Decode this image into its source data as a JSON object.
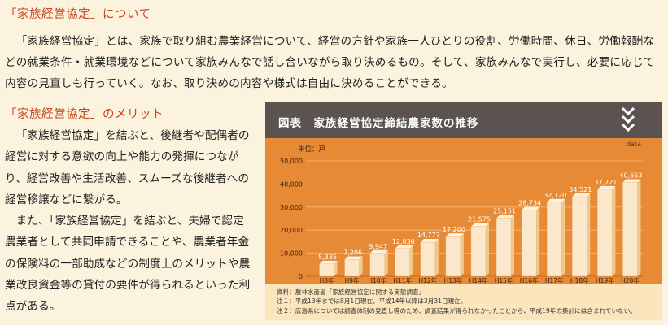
{
  "section1": {
    "heading": "「家族経営協定」について",
    "body": "「家族経営協定」とは、家族で取り組む農業経営について、経営の方針や家族一人ひとりの役割、労働時間、休日、労働報酬などの就業条件・就業環境などについて家族みんなで話し合いながら取り決めるもの。そして、家族みんなで実行し、必要に応じて内容の見直しも行っていく。なお、取り決めの内容や様式は自由に決めることができる。"
  },
  "section2": {
    "heading": "「家族経営協定」のメリット",
    "body1": "「家族経営協定」を結ぶと、後継者や配偶者の経営に対する意欲の向上や能力の発揮につながり、経営改善や生活改善、スムーズな後継者への経営移譲などに繋がる。",
    "body2": "また、「家族経営協定」を結ぶと、夫婦で認定農業者として共同申請できることや、農業者年金の保険料の一部助成などの制度上のメリットや農業改良資金等の貸付の要件が得られるといった利点がある。"
  },
  "figure": {
    "title": "図表　家族経営協定締結農家数の推移",
    "tag": "data",
    "icon": "triple-chevron-down-icon",
    "colors": {
      "header": "#5c5350",
      "plot_bg": "#e78a35",
      "bar_front": "#fbe8cc",
      "bar_side": "#f2c98d",
      "panel_bg": "#fbe5bd"
    },
    "notes": [
      "資料：農林水産省「家族経営協定に関する実態調査」",
      "注１：平成13年までは8月1日現在、平成14年以降は3月31日現在。",
      "注２：広島県については調査体制の見直し等のため、調査結果が得られなかったことから、平成19年の集計には含まれていない。"
    ]
  },
  "chart_data": {
    "type": "bar",
    "title": "家族経営協定締結農家数の推移",
    "unit_label": "単位：戸",
    "categories": [
      "H8年",
      "H9年",
      "H10年",
      "H11年",
      "H12年",
      "H13年",
      "H14年",
      "H15年",
      "H16年",
      "H17年",
      "H18年",
      "H19年",
      "H20年"
    ],
    "values": [
      5335,
      7206,
      9947,
      12030,
      14777,
      17200,
      21575,
      25151,
      28734,
      32120,
      34521,
      37721,
      40663
    ],
    "value_labels": [
      "5,335",
      "7,206",
      "9,947",
      "12,030",
      "14,777",
      "17,200",
      "21,575",
      "25,151",
      "28,734",
      "32,120",
      "34,521",
      "37,721",
      "40,663"
    ],
    "yticks": [
      0,
      10000,
      20000,
      30000,
      40000,
      50000
    ],
    "ytick_labels": [
      "0",
      "10,000",
      "20,000",
      "30,000",
      "40,000",
      "50,000"
    ],
    "ylim": [
      0,
      50000
    ],
    "grid": true,
    "legend": "none"
  }
}
